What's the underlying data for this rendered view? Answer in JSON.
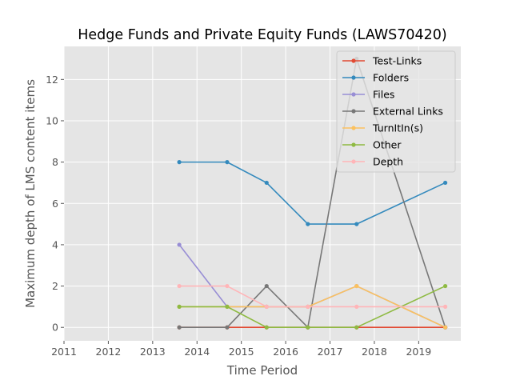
{
  "chart_data": {
    "type": "line",
    "title": "Hedge Funds and Private Equity Funds (LAWS70420)",
    "xlabel": "Time Period",
    "ylabel": "Maximum depth of LMS content items",
    "xlim": [
      2011,
      2019.95
    ],
    "ylim": [
      -0.65,
      13.6
    ],
    "xticks": [
      2011,
      2012,
      2013,
      2014,
      2015,
      2016,
      2017,
      2018,
      2019
    ],
    "yticks": [
      0,
      2,
      4,
      6,
      8,
      10,
      12
    ],
    "grid": true,
    "legend_position": "top-right",
    "x": [
      2013.6,
      2014.68,
      2015.57,
      2016.5,
      2017.6,
      2019.6
    ],
    "series": [
      {
        "name": "Test-Links",
        "color": "#E24A33",
        "values": [
          0,
          0,
          0,
          0,
          0,
          0
        ]
      },
      {
        "name": "Folders",
        "color": "#348ABD",
        "values": [
          8,
          8,
          7,
          5,
          5,
          7
        ]
      },
      {
        "name": "Files",
        "color": "#988ED5",
        "values": [
          4,
          1,
          1,
          1,
          2,
          0
        ]
      },
      {
        "name": "External Links",
        "color": "#777777",
        "values": [
          0,
          0,
          2,
          0,
          13,
          0
        ]
      },
      {
        "name": "TurnItIn(s)",
        "color": "#FBC15E",
        "values": [
          1,
          1,
          1,
          1,
          2,
          0
        ]
      },
      {
        "name": "Other",
        "color": "#8EBA42",
        "values": [
          1,
          1,
          0,
          0,
          0,
          2
        ]
      },
      {
        "name": "Depth",
        "color": "#FFB5B8",
        "values": [
          2,
          2,
          1,
          1,
          1,
          1
        ]
      }
    ]
  }
}
